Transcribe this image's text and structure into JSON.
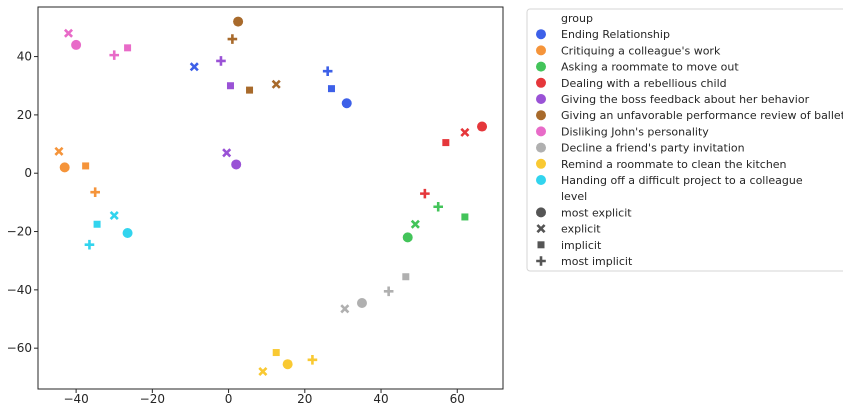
{
  "chart_data": {
    "type": "scatter",
    "title": "",
    "xlabel": "",
    "ylabel": "",
    "xlim": [
      -50,
      72
    ],
    "ylim": [
      -74,
      57
    ],
    "xticks": [
      -40,
      -20,
      0,
      20,
      40,
      60
    ],
    "yticks": [
      -60,
      -40,
      -20,
      0,
      20,
      40
    ],
    "xtick_labels": [
      "−40",
      "−20",
      "0",
      "20",
      "40",
      "60"
    ],
    "ytick_labels": [
      "−60",
      "−40",
      "−20",
      "0",
      "20",
      "40"
    ],
    "grid": false,
    "legend_placement": "outside-right-top",
    "legend": {
      "group_title": "group",
      "level_title": "level",
      "groups": [
        {
          "name": "Ending Relationship",
          "color": "#3d60e8"
        },
        {
          "name": "Critiquing a colleague's work",
          "color": "#f5943a"
        },
        {
          "name": "Asking a roommate to move out",
          "color": "#43c45a"
        },
        {
          "name": "Dealing with a rebellious child",
          "color": "#e5373b"
        },
        {
          "name": "Giving the boss feedback about her behavior",
          "color": "#9a52d6"
        },
        {
          "name": "Giving an unfavorable performance review of ballet",
          "color": "#a86a2b"
        },
        {
          "name": "Disliking John's personality",
          "color": "#e86bc8"
        },
        {
          "name": "Decline a friend's party invitation",
          "color": "#b0b0b0"
        },
        {
          "name": "Remind a roommate to clean the kitchen",
          "color": "#f9c932"
        },
        {
          "name": "Handing off a difficult project to a colleague",
          "color": "#32d4ee"
        }
      ],
      "levels": [
        {
          "name": "most explicit",
          "marker": "circle"
        },
        {
          "name": "explicit",
          "marker": "x"
        },
        {
          "name": "implicit",
          "marker": "square"
        },
        {
          "name": "most implicit",
          "marker": "plus"
        }
      ]
    },
    "points": [
      {
        "group": 0,
        "level": 0,
        "x": 31,
        "y": 24
      },
      {
        "group": 0,
        "level": 1,
        "x": -9,
        "y": 36.5
      },
      {
        "group": 0,
        "level": 2,
        "x": 27,
        "y": 29
      },
      {
        "group": 0,
        "level": 3,
        "x": 26,
        "y": 35
      },
      {
        "group": 1,
        "level": 0,
        "x": -43,
        "y": 2
      },
      {
        "group": 1,
        "level": 1,
        "x": -44.5,
        "y": 7.5
      },
      {
        "group": 1,
        "level": 2,
        "x": -37.5,
        "y": 2.5
      },
      {
        "group": 1,
        "level": 3,
        "x": -35,
        "y": -6.5
      },
      {
        "group": 2,
        "level": 0,
        "x": 47,
        "y": -22
      },
      {
        "group": 2,
        "level": 1,
        "x": 49,
        "y": -17.5
      },
      {
        "group": 2,
        "level": 2,
        "x": 62,
        "y": -15
      },
      {
        "group": 2,
        "level": 3,
        "x": 55,
        "y": -11.5
      },
      {
        "group": 3,
        "level": 0,
        "x": 66.5,
        "y": 16
      },
      {
        "group": 3,
        "level": 1,
        "x": 62,
        "y": 14
      },
      {
        "group": 3,
        "level": 2,
        "x": 57,
        "y": 10.5
      },
      {
        "group": 3,
        "level": 3,
        "x": 51.5,
        "y": -7
      },
      {
        "group": 4,
        "level": 0,
        "x": 2,
        "y": 3
      },
      {
        "group": 4,
        "level": 1,
        "x": -0.5,
        "y": 7
      },
      {
        "group": 4,
        "level": 2,
        "x": 0.5,
        "y": 30
      },
      {
        "group": 4,
        "level": 3,
        "x": -2,
        "y": 38.5
      },
      {
        "group": 5,
        "level": 0,
        "x": 2.5,
        "y": 52
      },
      {
        "group": 5,
        "level": 1,
        "x": 12.5,
        "y": 30.5
      },
      {
        "group": 5,
        "level": 2,
        "x": 5.5,
        "y": 28.5
      },
      {
        "group": 5,
        "level": 3,
        "x": 1,
        "y": 46
      },
      {
        "group": 6,
        "level": 0,
        "x": -40,
        "y": 44
      },
      {
        "group": 6,
        "level": 1,
        "x": -42,
        "y": 48
      },
      {
        "group": 6,
        "level": 2,
        "x": -26.5,
        "y": 43
      },
      {
        "group": 6,
        "level": 3,
        "x": -30,
        "y": 40.5
      },
      {
        "group": 7,
        "level": 0,
        "x": 35,
        "y": -44.5
      },
      {
        "group": 7,
        "level": 1,
        "x": 30.5,
        "y": -46.5
      },
      {
        "group": 7,
        "level": 2,
        "x": 46.5,
        "y": -35.5
      },
      {
        "group": 7,
        "level": 3,
        "x": 42,
        "y": -40.5
      },
      {
        "group": 8,
        "level": 0,
        "x": 15.5,
        "y": -65.5
      },
      {
        "group": 8,
        "level": 1,
        "x": 9,
        "y": -68
      },
      {
        "group": 8,
        "level": 2,
        "x": 12.5,
        "y": -61.5
      },
      {
        "group": 8,
        "level": 3,
        "x": 22,
        "y": -64
      },
      {
        "group": 9,
        "level": 0,
        "x": -26.5,
        "y": -20.5
      },
      {
        "group": 9,
        "level": 1,
        "x": -30,
        "y": -14.5
      },
      {
        "group": 9,
        "level": 2,
        "x": -34.5,
        "y": -17.5
      },
      {
        "group": 9,
        "level": 3,
        "x": -36.5,
        "y": -24.5
      }
    ]
  }
}
